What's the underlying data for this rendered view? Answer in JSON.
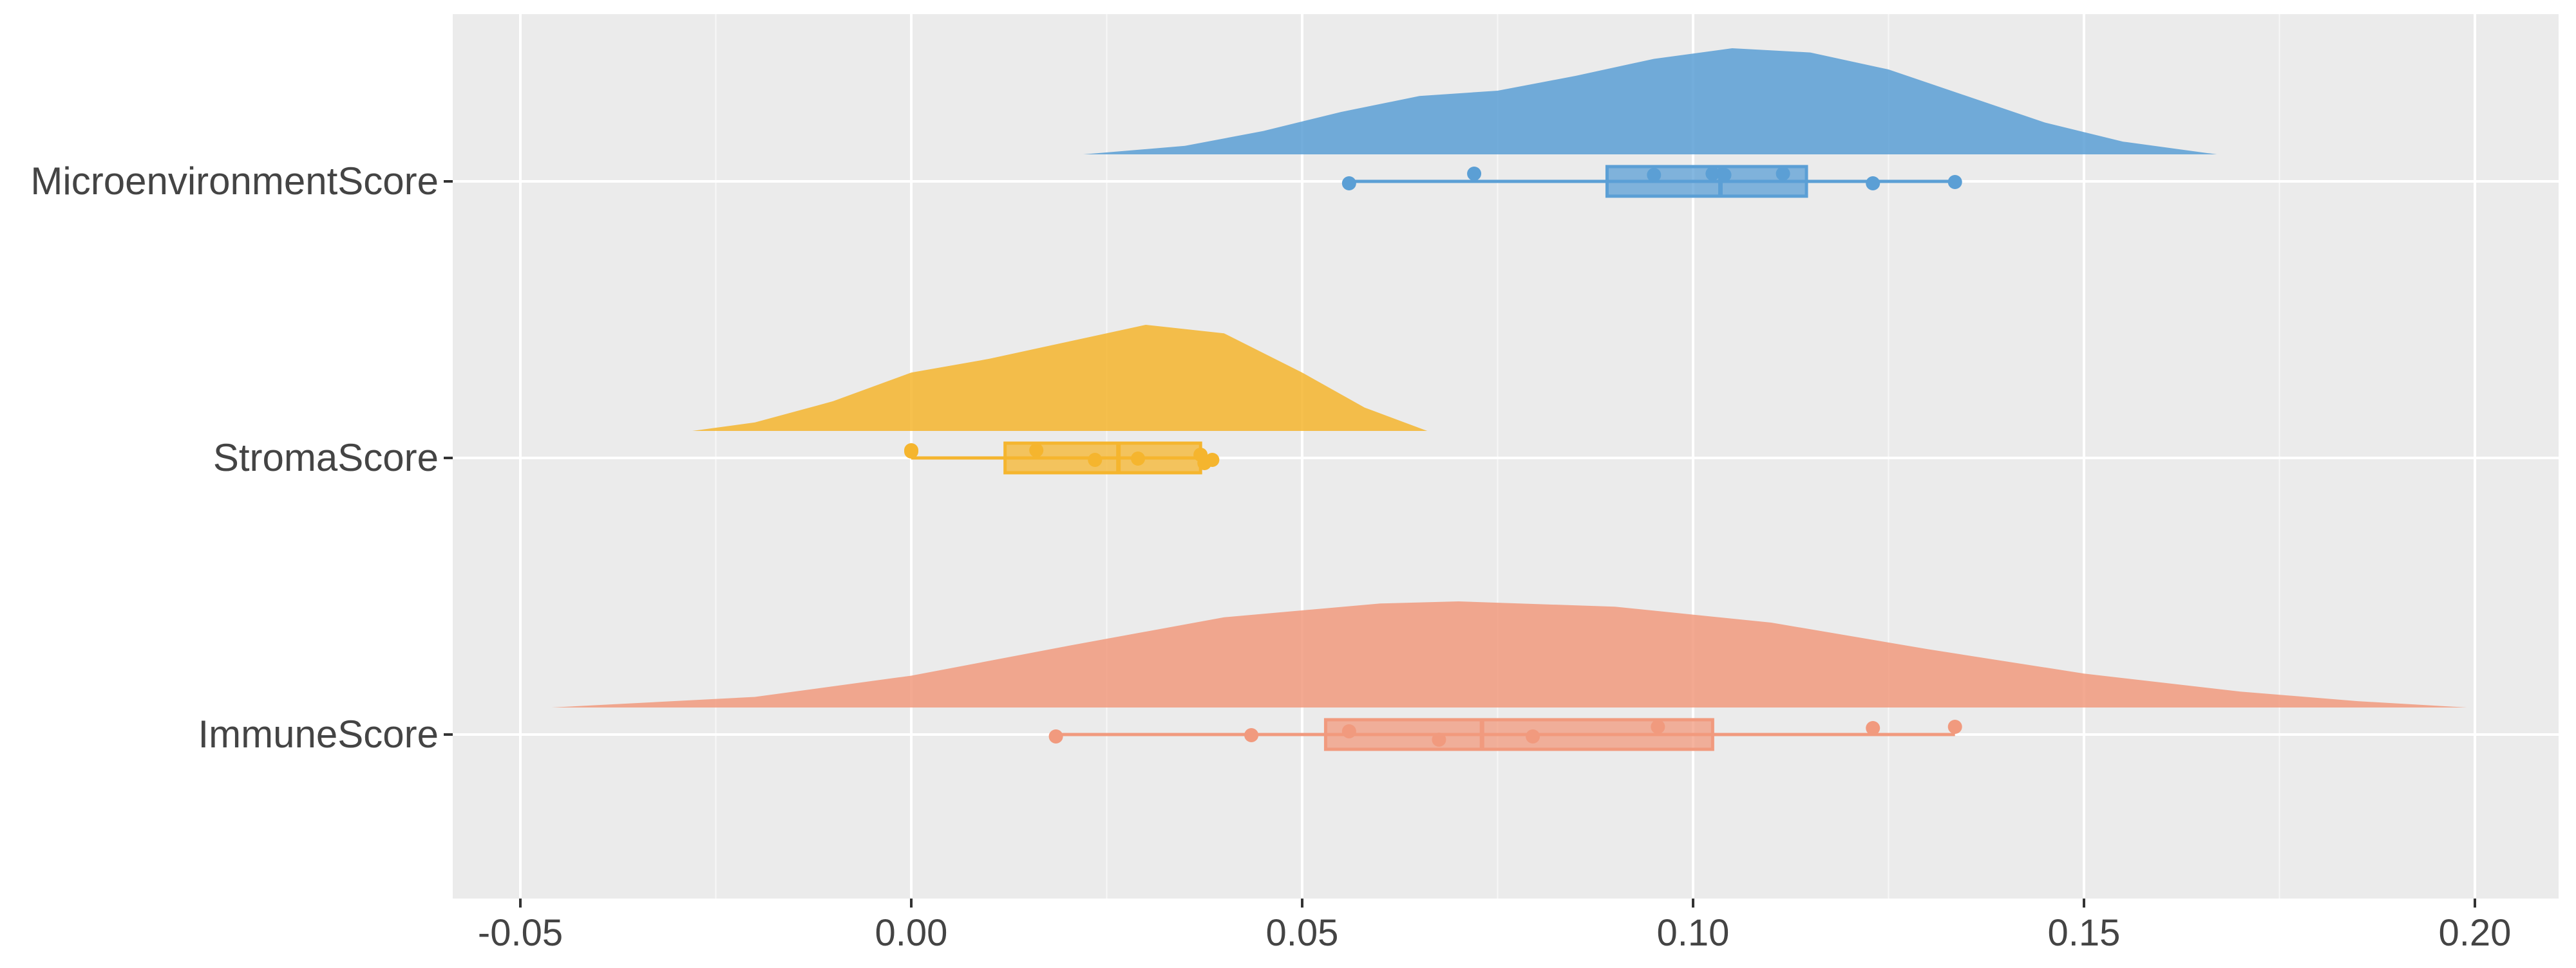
{
  "chart_data": {
    "type": "raincloud",
    "title": "",
    "xlabel": "",
    "ylabel": "",
    "xlim": [
      -0.06,
      0.205
    ],
    "x_ticks": [
      -0.05,
      0.0,
      0.05,
      0.1,
      0.15,
      0.2
    ],
    "x_tick_labels": [
      "-0.05",
      "0.00",
      "0.05",
      "0.10",
      "0.15",
      "0.20"
    ],
    "grid": true,
    "legend": "none",
    "categories": [
      "MicroenvironmentScore",
      "StromaScore",
      "ImmuneScore"
    ],
    "series": [
      {
        "name": "MicroenvironmentScore",
        "color": "#5B9FD5",
        "density_range": [
          0.022,
          0.167
        ],
        "density_curve": [
          [
            0.022,
            0.0
          ],
          [
            0.035,
            0.08
          ],
          [
            0.045,
            0.22
          ],
          [
            0.055,
            0.4
          ],
          [
            0.065,
            0.55
          ],
          [
            0.075,
            0.6
          ],
          [
            0.085,
            0.74
          ],
          [
            0.095,
            0.9
          ],
          [
            0.105,
            1.0
          ],
          [
            0.115,
            0.96
          ],
          [
            0.125,
            0.8
          ],
          [
            0.135,
            0.55
          ],
          [
            0.145,
            0.3
          ],
          [
            0.155,
            0.12
          ],
          [
            0.167,
            0.0
          ]
        ],
        "points": [
          0.056,
          0.072,
          0.095,
          0.1025,
          0.104,
          0.1115,
          0.123,
          0.1335
        ],
        "box": {
          "min": 0.056,
          "q1": 0.089,
          "median": 0.1035,
          "q3": 0.1145,
          "max": 0.1335
        }
      },
      {
        "name": "StromaScore",
        "color": "#F5B52E",
        "density_range": [
          -0.028,
          0.066
        ],
        "density_curve": [
          [
            -0.028,
            0.0
          ],
          [
            -0.02,
            0.08
          ],
          [
            -0.01,
            0.28
          ],
          [
            0.0,
            0.55
          ],
          [
            0.01,
            0.68
          ],
          [
            0.02,
            0.84
          ],
          [
            0.03,
            1.0
          ],
          [
            0.04,
            0.92
          ],
          [
            0.05,
            0.55
          ],
          [
            0.058,
            0.22
          ],
          [
            0.066,
            0.0
          ]
        ],
        "points": [
          0.0,
          0.0,
          0.016,
          0.0235,
          0.029,
          0.037,
          0.0375,
          0.0385
        ],
        "box": {
          "min": 0.0,
          "q1": 0.012,
          "median": 0.0265,
          "q3": 0.037,
          "max": 0.0385
        }
      },
      {
        "name": "ImmuneScore",
        "color": "#F19A7E",
        "density_range": [
          -0.046,
          0.199
        ],
        "density_curve": [
          [
            -0.046,
            0.0
          ],
          [
            -0.02,
            0.1
          ],
          [
            0.0,
            0.3
          ],
          [
            0.02,
            0.58
          ],
          [
            0.04,
            0.85
          ],
          [
            0.06,
            0.98
          ],
          [
            0.07,
            1.0
          ],
          [
            0.09,
            0.95
          ],
          [
            0.11,
            0.8
          ],
          [
            0.13,
            0.55
          ],
          [
            0.15,
            0.32
          ],
          [
            0.17,
            0.15
          ],
          [
            0.185,
            0.06
          ],
          [
            0.199,
            0.0
          ]
        ],
        "points": [
          0.0185,
          0.0435,
          0.056,
          0.0675,
          0.0795,
          0.0955,
          0.123,
          0.1335
        ],
        "box": {
          "min": 0.0185,
          "q1": 0.053,
          "median": 0.073,
          "q3": 0.1025,
          "max": 0.1335
        }
      }
    ]
  }
}
